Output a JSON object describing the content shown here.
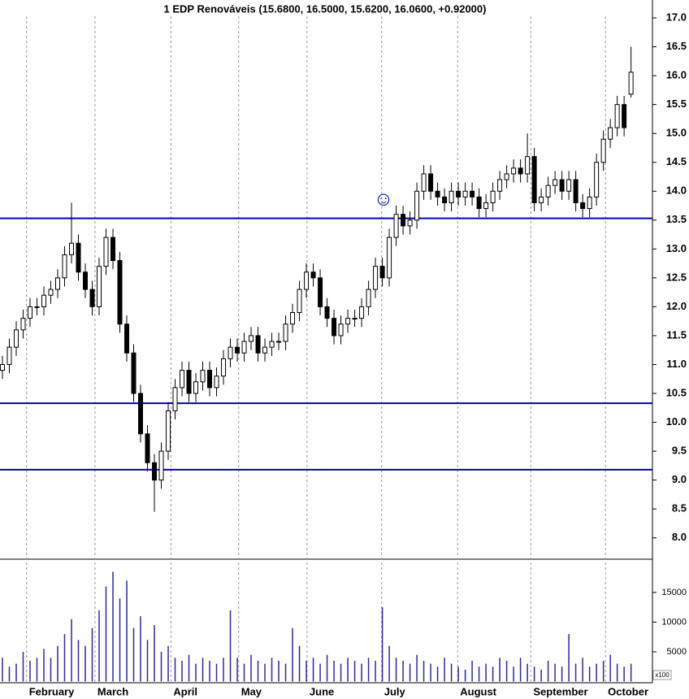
{
  "chart_data": {
    "type": "candlestick",
    "title": "1 EDP Renováveis (15.6800, 16.5000, 15.6200, 16.0600, +0.92000)",
    "annotation": "☺",
    "volume_unit_label": "x100",
    "up_color": "#ffffff",
    "down_color": "#000000",
    "level_color": "#0000b4",
    "volume_color": "#2a2a9a",
    "xlim": [
      -0.35,
      94.1
    ],
    "xticks": [
      {
        "value": 3.5,
        "label": "February"
      },
      {
        "value": 13.4,
        "label": "March"
      },
      {
        "value": 24.4,
        "label": "April"
      },
      {
        "value": 34.2,
        "label": "May"
      },
      {
        "value": 44.1,
        "label": "June"
      },
      {
        "value": 54.9,
        "label": "July"
      },
      {
        "value": 65.9,
        "label": "August"
      },
      {
        "value": 76.5,
        "label": "September"
      },
      {
        "value": 87.3,
        "label": "October"
      }
    ],
    "ylim": [
      7.63,
      17.31
    ],
    "yticks": [
      {
        "value": 8,
        "label": "8.0"
      },
      8.5,
      {
        "value": 9,
        "label": "9.0"
      },
      9.5,
      {
        "value": 10,
        "label": "10.0"
      },
      10.5,
      {
        "value": 11,
        "label": "11.0"
      },
      11.5,
      {
        "value": 12,
        "label": "12.0"
      },
      12.5,
      {
        "value": 13,
        "label": "13.0"
      },
      13.5,
      {
        "value": 14,
        "label": "14.0"
      },
      14.5,
      {
        "value": 15,
        "label": "15.0"
      },
      15.5,
      {
        "value": 16,
        "label": "16.0"
      },
      16.5,
      {
        "value": 17,
        "label": "17.0"
      }
    ],
    "levels": [
      13.53,
      10.33,
      9.18
    ],
    "volume_ylim": [
      0,
      20600
    ],
    "volume_yticks": [
      5000,
      10000,
      15000
    ],
    "open": [
      10.9,
      11.0,
      11.3,
      11.6,
      11.8,
      12.0,
      12.0,
      12.2,
      12.3,
      12.5,
      12.9,
      13.1,
      12.6,
      12.3,
      12.0,
      12.7,
      13.2,
      12.8,
      11.7,
      11.2,
      10.5,
      9.8,
      9.3,
      9.0,
      9.5,
      10.2,
      10.6,
      10.9,
      10.5,
      10.7,
      10.9,
      10.6,
      10.8,
      11.1,
      11.3,
      11.2,
      11.4,
      11.5,
      11.2,
      11.3,
      11.4,
      11.4,
      11.7,
      11.9,
      12.3,
      12.6,
      12.5,
      12.0,
      11.8,
      11.5,
      11.7,
      11.8,
      11.8,
      12.0,
      12.3,
      12.7,
      12.5,
      13.2,
      13.6,
      13.4,
      13.5,
      14.0,
      14.3,
      14.0,
      13.9,
      13.8,
      14.0,
      13.9,
      14.0,
      13.9,
      13.7,
      13.8,
      14.0,
      14.2,
      14.3,
      14.4,
      14.3,
      14.6,
      13.8,
      13.9,
      14.1,
      14.2,
      14.0,
      14.2,
      13.8,
      13.7,
      13.9,
      14.5,
      14.9,
      15.1,
      15.5,
      15.68
    ],
    "high": [
      11.15,
      11.45,
      11.75,
      11.95,
      12.15,
      12.15,
      12.35,
      12.45,
      12.65,
      13.05,
      13.8,
      13.25,
      12.75,
      12.45,
      12.85,
      13.35,
      13.35,
      12.95,
      11.85,
      11.35,
      10.65,
      9.95,
      9.45,
      9.65,
      10.35,
      10.75,
      11.05,
      11.05,
      10.85,
      11.05,
      11.05,
      10.95,
      11.25,
      11.45,
      11.45,
      11.55,
      11.65,
      11.65,
      11.45,
      11.55,
      11.55,
      11.85,
      12.05,
      12.45,
      12.75,
      12.75,
      12.65,
      12.15,
      11.95,
      11.85,
      11.95,
      11.95,
      12.15,
      12.45,
      12.85,
      12.85,
      13.35,
      13.75,
      13.75,
      13.65,
      14.15,
      14.45,
      14.45,
      14.15,
      14.05,
      14.15,
      14.15,
      14.15,
      14.15,
      14.05,
      13.95,
      14.15,
      14.35,
      14.45,
      14.55,
      14.55,
      15.0,
      14.75,
      14.05,
      14.25,
      14.35,
      14.35,
      14.35,
      14.35,
      13.95,
      14.05,
      14.65,
      15.05,
      15.25,
      15.65,
      15.65,
      16.5
    ],
    "low": [
      10.75,
      10.85,
      11.15,
      11.45,
      11.65,
      11.85,
      11.85,
      12.05,
      12.15,
      12.35,
      12.75,
      12.45,
      12.15,
      11.85,
      11.85,
      12.55,
      12.65,
      11.55,
      11.05,
      10.35,
      9.65,
      9.15,
      8.45,
      8.85,
      9.35,
      10.05,
      10.45,
      10.35,
      10.35,
      10.55,
      10.45,
      10.45,
      10.65,
      10.95,
      11.05,
      11.05,
      11.25,
      11.05,
      11.05,
      11.15,
      11.25,
      11.25,
      11.55,
      11.75,
      12.15,
      12.35,
      11.85,
      11.65,
      11.35,
      11.35,
      11.55,
      11.65,
      11.65,
      11.85,
      12.15,
      12.35,
      12.35,
      13.05,
      13.25,
      13.25,
      13.35,
      13.85,
      13.85,
      13.75,
      13.65,
      13.65,
      13.75,
      13.75,
      13.75,
      13.55,
      13.55,
      13.65,
      13.85,
      14.05,
      14.15,
      14.15,
      14.15,
      13.65,
      13.65,
      13.75,
      13.95,
      13.85,
      13.85,
      13.65,
      13.55,
      13.55,
      13.75,
      14.35,
      14.75,
      14.95,
      14.95,
      15.62
    ],
    "close": [
      11.0,
      11.3,
      11.6,
      11.8,
      12.0,
      12.0,
      12.2,
      12.3,
      12.5,
      12.9,
      13.1,
      12.6,
      12.3,
      12.0,
      12.7,
      13.2,
      12.8,
      11.7,
      11.2,
      10.5,
      9.8,
      9.3,
      9.0,
      9.5,
      10.2,
      10.6,
      10.9,
      10.5,
      10.7,
      10.9,
      10.6,
      10.8,
      11.1,
      11.3,
      11.2,
      11.4,
      11.5,
      11.2,
      11.3,
      11.4,
      11.4,
      11.7,
      11.9,
      12.3,
      12.6,
      12.5,
      12.0,
      11.8,
      11.5,
      11.7,
      11.8,
      11.8,
      12.0,
      12.3,
      12.7,
      12.5,
      13.2,
      13.6,
      13.4,
      13.5,
      14.0,
      14.3,
      14.0,
      13.9,
      13.8,
      14.0,
      13.9,
      14.0,
      13.9,
      13.7,
      13.8,
      14.0,
      14.2,
      14.3,
      14.4,
      14.3,
      14.6,
      13.8,
      13.9,
      14.1,
      14.2,
      14.0,
      14.2,
      13.8,
      13.7,
      13.9,
      14.5,
      14.9,
      15.1,
      15.5,
      15.1,
      16.06
    ],
    "volume": [
      4000,
      2500,
      3000,
      5000,
      3500,
      4000,
      5500,
      4000,
      6000,
      8000,
      10500,
      7000,
      6000,
      9000,
      12000,
      16000,
      18500,
      14000,
      17000,
      9000,
      11000,
      7000,
      9500,
      5000,
      6000,
      4000,
      3500,
      4500,
      3000,
      4000,
      3500,
      3000,
      4000,
      12000,
      4000,
      3000,
      4500,
      3500,
      3000,
      4000,
      3500,
      3000,
      9000,
      6000,
      3500,
      4000,
      3000,
      4500,
      3500,
      3000,
      4000,
      3500,
      3000,
      4000,
      3500,
      12500,
      6000,
      4000,
      3500,
      3000,
      4500,
      3500,
      3000,
      2500,
      4000,
      3000,
      2500,
      2000,
      3500,
      2500,
      3000,
      2500,
      4000,
      3500,
      2500,
      4000,
      3000,
      2500,
      2000,
      3500,
      3000,
      2500,
      8000,
      3000,
      4000,
      2500,
      3000,
      3500,
      4500,
      3000,
      2500,
      3000
    ]
  }
}
